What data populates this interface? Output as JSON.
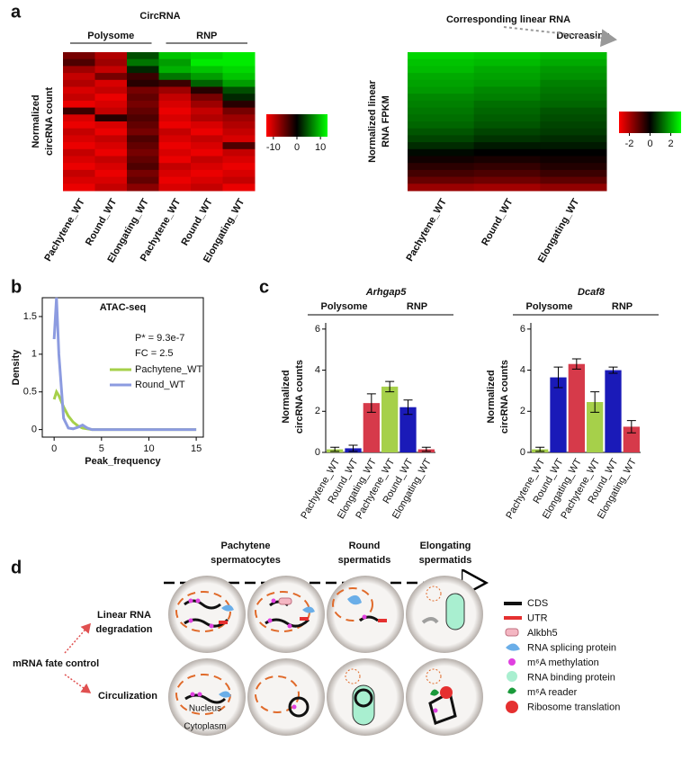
{
  "panel_labels": [
    "a",
    "b",
    "c",
    "d"
  ],
  "chart_data": [
    {
      "type": "heatmap",
      "title": "CircRNA",
      "group_labels": [
        "Polysome",
        "RNP"
      ],
      "ylabel": [
        "Normalized",
        "circRNA count"
      ],
      "categories": [
        "Pachytene_WT",
        "Round_WT",
        "Elongating_WT",
        "Pachytene_WT",
        "Round_WT",
        "Elongating_WT"
      ],
      "colors": [
        "#ff0000",
        "#000000",
        "#00ff00"
      ],
      "clim": [
        -13,
        13
      ],
      "colorbar_ticks": [
        -10,
        0,
        10
      ],
      "values": [
        [
          -6,
          -9,
          4,
          10,
          11,
          12
        ],
        [
          -4,
          -8,
          6,
          8,
          12,
          12
        ],
        [
          -8,
          -10,
          2,
          9,
          10,
          11
        ],
        [
          -10,
          -6,
          -3,
          6,
          8,
          10
        ],
        [
          -9,
          -11,
          -2,
          -3,
          5,
          8
        ],
        [
          -11,
          -10,
          -6,
          -8,
          -2,
          4
        ],
        [
          -10,
          -12,
          -5,
          -10,
          -6,
          2
        ],
        [
          -12,
          -11,
          -6,
          -11,
          -8,
          -2
        ],
        [
          -3,
          -10,
          -5,
          -12,
          -10,
          -6
        ],
        [
          -11,
          -2,
          -4,
          -11,
          -9,
          -8
        ],
        [
          -12,
          -11,
          -5,
          -12,
          -11,
          -9
        ],
        [
          -10,
          -12,
          -6,
          -10,
          -12,
          -10
        ],
        [
          -11,
          -10,
          -4,
          -11,
          -10,
          -11
        ],
        [
          -12,
          -11,
          -5,
          -12,
          -11,
          -4
        ],
        [
          -10,
          -12,
          -6,
          -11,
          -12,
          -10
        ],
        [
          -11,
          -10,
          -5,
          -12,
          -10,
          -11
        ],
        [
          -12,
          -11,
          -4,
          -10,
          -11,
          -12
        ],
        [
          -10,
          -12,
          -6,
          -11,
          -12,
          -11
        ],
        [
          -11,
          -11,
          -5,
          -12,
          -11,
          -10
        ],
        [
          -12,
          -10,
          -7,
          -11,
          -10,
          -12
        ]
      ]
    },
    {
      "type": "heatmap",
      "title": "Corresponding linear RNA",
      "annotation": "Decreasing",
      "ylabel": [
        "Normalized linear",
        "RNA FPKM"
      ],
      "categories": [
        "Pachytene_WT",
        "Round_WT",
        "Elongating_WT"
      ],
      "colors": [
        "#ff0000",
        "#000000",
        "#00ff00"
      ],
      "clim": [
        -3,
        3
      ],
      "colorbar_ticks": [
        -2,
        0,
        2
      ],
      "values": [
        [
          2.5,
          2.4,
          2.2
        ],
        [
          2.3,
          2.2,
          2.0
        ],
        [
          2.2,
          2.0,
          1.8
        ],
        [
          2.0,
          1.9,
          1.7
        ],
        [
          1.9,
          1.8,
          1.5
        ],
        [
          1.8,
          1.6,
          1.4
        ],
        [
          1.6,
          1.5,
          1.3
        ],
        [
          1.5,
          1.3,
          1.2
        ],
        [
          1.4,
          1.2,
          1.0
        ],
        [
          1.3,
          1.1,
          0.9
        ],
        [
          1.2,
          1.0,
          0.8
        ],
        [
          1.0,
          0.8,
          0.7
        ],
        [
          0.8,
          0.6,
          0.5
        ],
        [
          0.5,
          0.3,
          0.3
        ],
        [
          0.1,
          0.0,
          0.0
        ],
        [
          -0.2,
          -0.3,
          -0.2
        ],
        [
          -0.5,
          -0.6,
          -0.4
        ],
        [
          -0.8,
          -0.9,
          -0.7
        ],
        [
          -1.2,
          -1.3,
          -1.1
        ],
        [
          -1.8,
          -1.9,
          -1.7
        ]
      ]
    },
    {
      "type": "line",
      "title": "ATAC-seq",
      "xlabel": "Peak_frequency",
      "ylabel": "Density",
      "annotations": [
        "P* = 9.3e-7",
        "FC = 2.5"
      ],
      "x": [
        0,
        0.25,
        0.5,
        1,
        1.5,
        2,
        2.5,
        3,
        3.5,
        4,
        5,
        10,
        15
      ],
      "series": [
        {
          "name": "Pachytene_WT",
          "color": "#a6d04a",
          "values": [
            0.4,
            0.5,
            0.45,
            0.3,
            0.18,
            0.1,
            0.05,
            0.02,
            0.01,
            0,
            0,
            0,
            0
          ]
        },
        {
          "name": "Round_WT",
          "color": "#8c9be0",
          "values": [
            1.2,
            1.75,
            1.0,
            0.15,
            0.02,
            0.01,
            0.03,
            0.06,
            0.02,
            0,
            0,
            0,
            0
          ]
        }
      ],
      "xlim": [
        -1.25,
        15.75
      ],
      "xticks": [
        0,
        5,
        10,
        15
      ],
      "ylim": [
        -0.1,
        1.75
      ],
      "yticks": [
        0.0,
        0.5,
        1.0,
        1.5
      ]
    },
    {
      "type": "bar",
      "title": "Arhgap5",
      "group_labels": [
        "Polysome",
        "RNP"
      ],
      "ylabel": [
        "Normalized",
        "circRNA counts"
      ],
      "categories": [
        "Pachytene_WT",
        "Round_WT",
        "Elongating_WT",
        "Pachytene_WT",
        "Round_WT",
        "Elongating_WT"
      ],
      "values": [
        0.15,
        0.2,
        2.4,
        3.2,
        2.2,
        0.15
      ],
      "errors": [
        0.1,
        0.15,
        0.45,
        0.25,
        0.35,
        0.1
      ],
      "colors": [
        "#a6d04a",
        "#1a1ab8",
        "#d63a4a",
        "#a6d04a",
        "#1a1ab8",
        "#d63a4a"
      ],
      "ylim": [
        0,
        6.3
      ],
      "yticks": [
        0,
        2,
        4,
        6
      ]
    },
    {
      "type": "bar",
      "title": "Dcaf8",
      "group_labels": [
        "Polysome",
        "RNP"
      ],
      "ylabel": [
        "Normalized",
        "circRNA counts"
      ],
      "categories": [
        "Pachytene_WT",
        "Round_WT",
        "Elongating_WT",
        "Pachytene_WT",
        "Round_WT",
        "Elongating_WT"
      ],
      "values": [
        0.15,
        3.65,
        4.3,
        2.45,
        4.0,
        1.25
      ],
      "errors": [
        0.1,
        0.5,
        0.25,
        0.5,
        0.15,
        0.3
      ],
      "colors": [
        "#a6d04a",
        "#1a1ab8",
        "#d63a4a",
        "#a6d04a",
        "#1a1ab8",
        "#d63a4a"
      ],
      "ylim": [
        0,
        6.3
      ],
      "yticks": [
        0,
        2,
        4,
        6
      ]
    }
  ],
  "diagram": {
    "stages": [
      [
        "Pachytene",
        "spermatocytes"
      ],
      [
        "Round",
        "spermatids"
      ],
      [
        "Elongating",
        "spermatids"
      ]
    ],
    "rows": [
      [
        "Linear RNA",
        "degradation"
      ],
      [
        "Circulization"
      ]
    ],
    "root": "mRNA fate control",
    "compartments": [
      "Nucleus",
      "Cytoplasm"
    ],
    "legend": [
      "CDS",
      "UTR",
      "Alkbh5",
      "RNA splicing protein",
      "m⁶A methylation",
      "RNA binding protein",
      "m⁶A reader",
      "Ribosome translation"
    ]
  }
}
